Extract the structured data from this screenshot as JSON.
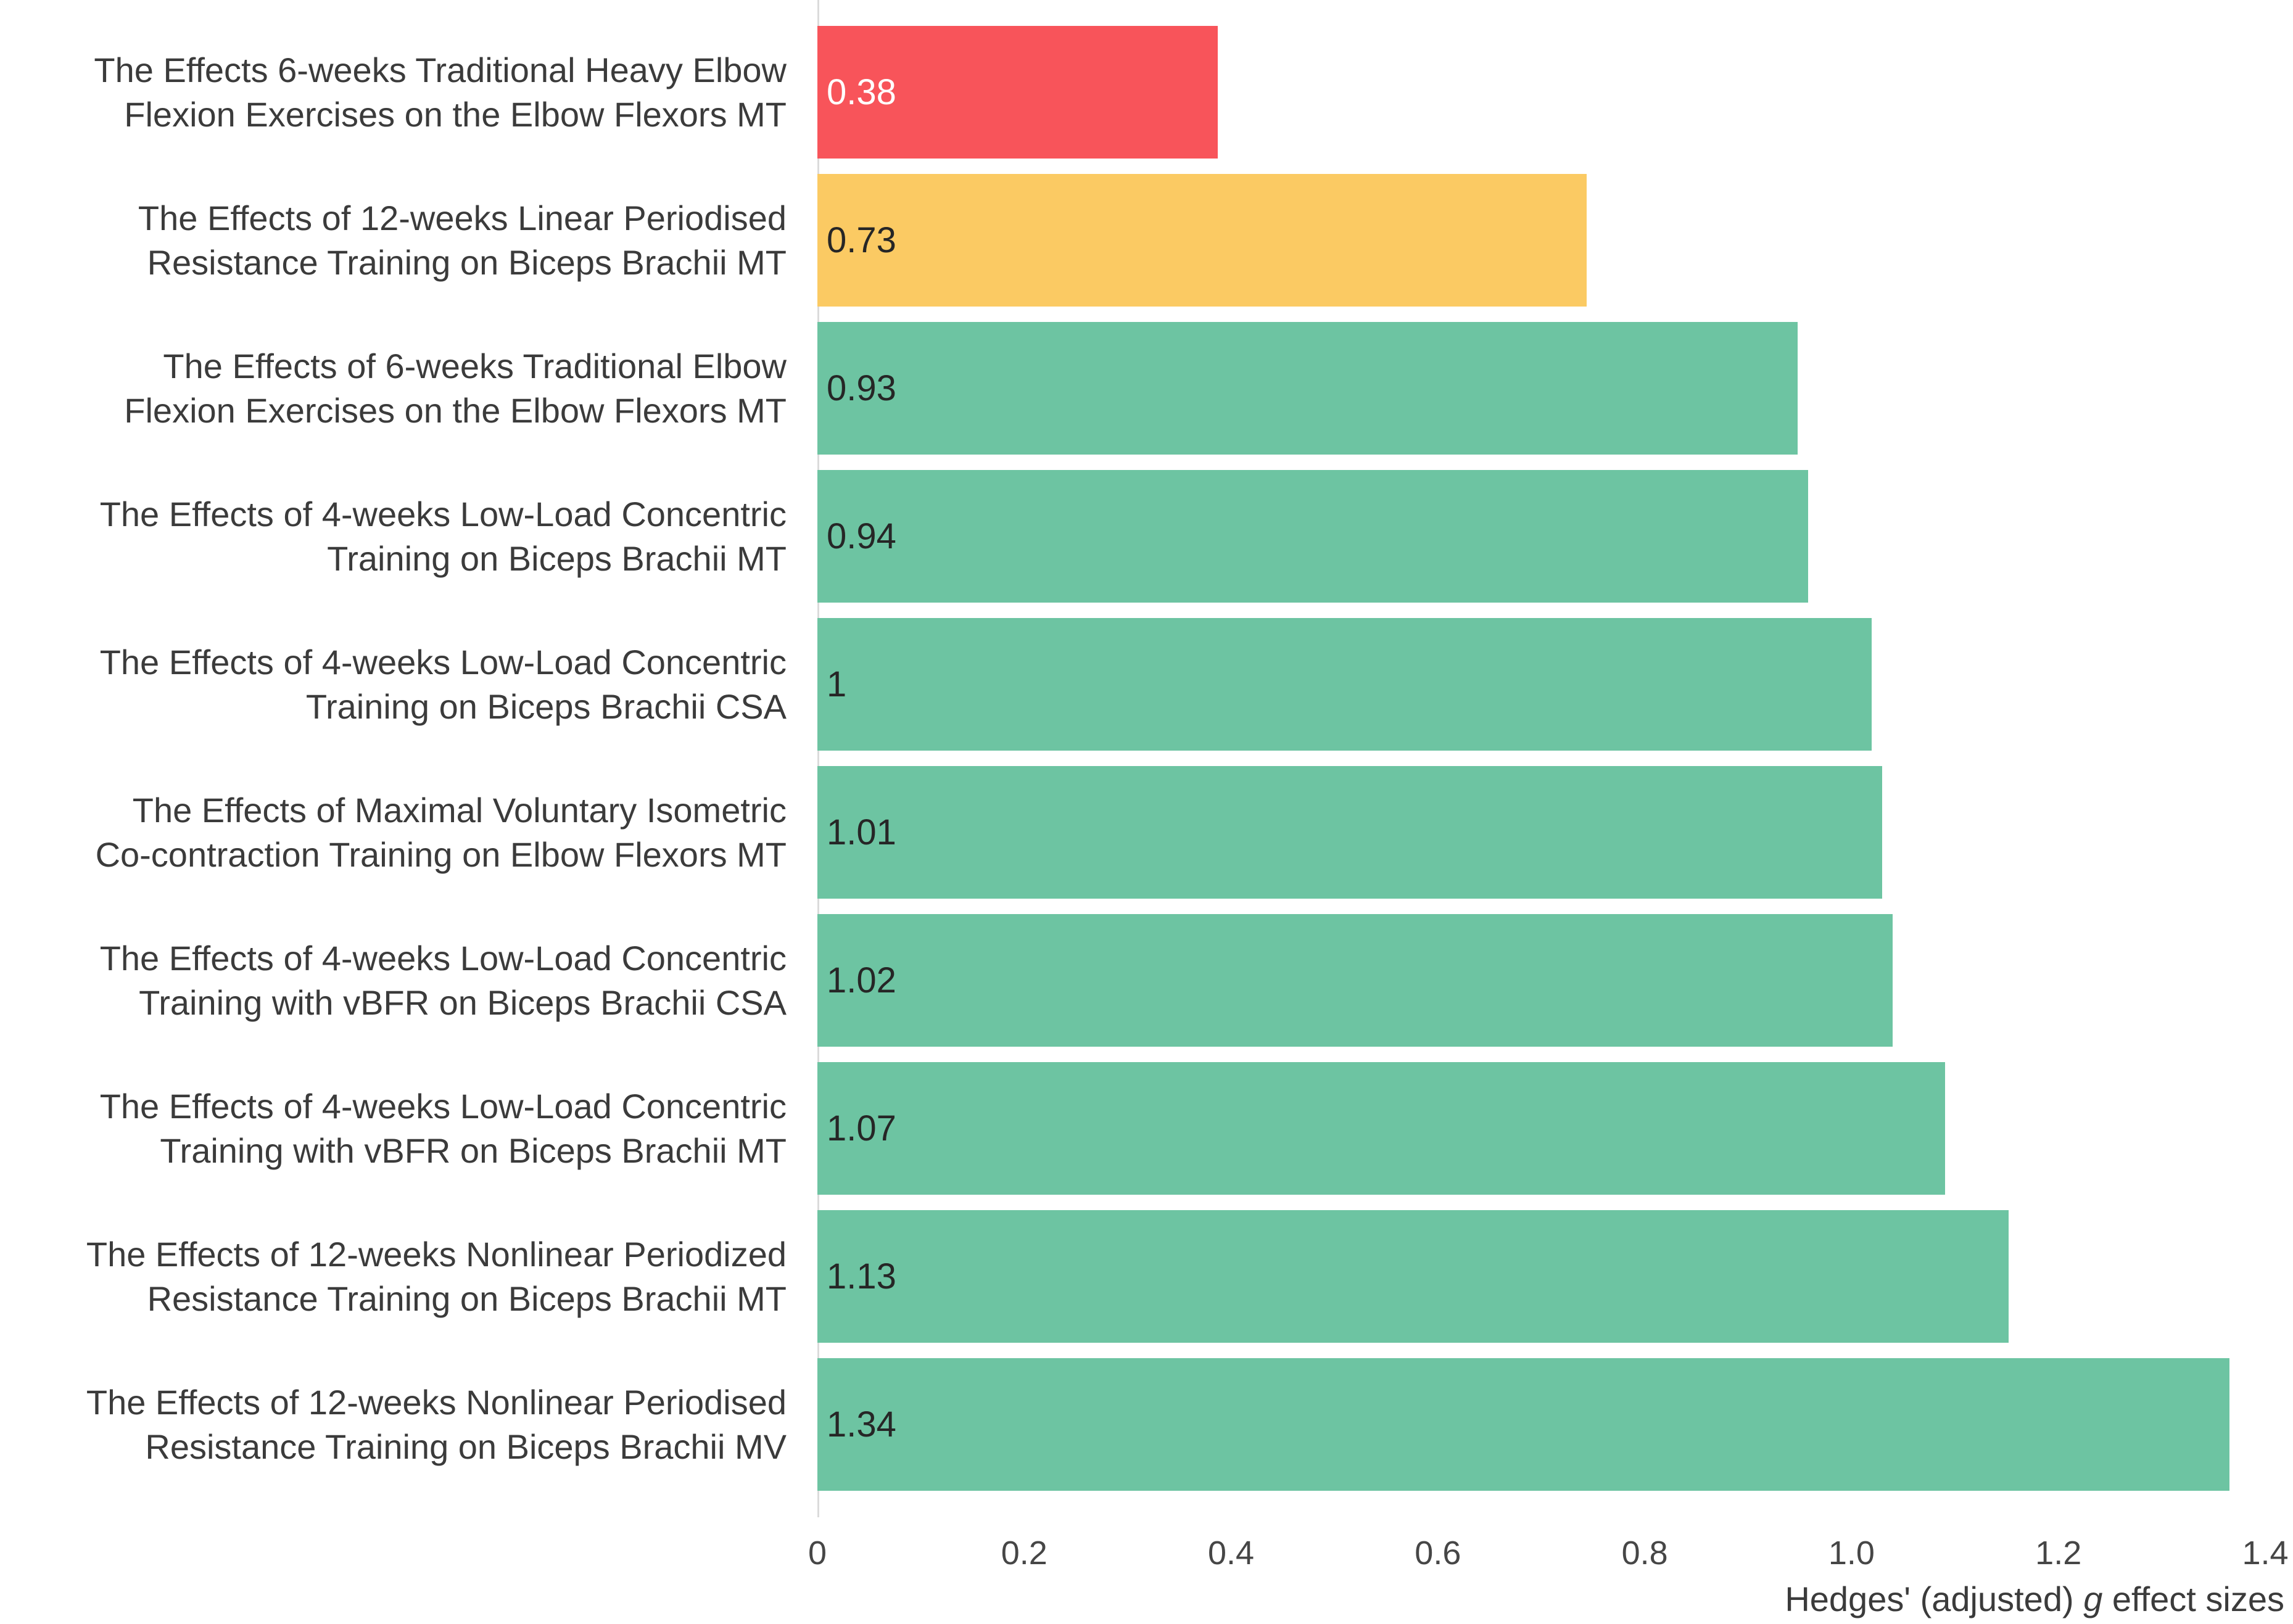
{
  "chart_data": {
    "type": "bar",
    "orientation": "horizontal",
    "xlabel": "Hedges' (adjusted) g effect sizes",
    "xlabel_parts": {
      "prefix": "Hedges' (adjusted) ",
      "italic": "g",
      "suffix": " effect sizes"
    },
    "xlim": [
      0,
      1.4
    ],
    "x_ticks": [
      "0",
      "0.2",
      "0.4",
      "0.6",
      "0.8",
      "1.0",
      "1.2",
      "1.4"
    ],
    "grid": false,
    "legend": false,
    "categories": [
      "The Effects 6-weeks Traditional Heavy Elbow\nFlexion Exercises on the Elbow Flexors MT",
      "The Effects of 12-weeks Linear Periodised\nResistance Training on Biceps Brachii MT",
      "The Effects of 6-weeks Traditional Elbow\nFlexion Exercises on the Elbow Flexors MT",
      "The Effects of 4-weeks Low-Load Concentric\nTraining on Biceps Brachii MT",
      "The Effects of 4-weeks Low-Load Concentric\nTraining on Biceps Brachii CSA",
      "The Effects of Maximal Voluntary Isometric\nCo-contraction Training on Elbow Flexors MT",
      "The Effects of 4-weeks Low-Load Concentric\nTraining with vBFR on Biceps Brachii CSA",
      "The Effects of 4-weeks Low-Load Concentric\nTraining with vBFR on Biceps Brachii MT",
      "The Effects of 12-weeks Nonlinear Periodized\nResistance Training on Biceps Brachii MT",
      "The Effects of 12-weeks Nonlinear Periodised\nResistance Training on Biceps Brachii MV"
    ],
    "values": [
      0.38,
      0.73,
      0.93,
      0.94,
      1,
      1.01,
      1.02,
      1.07,
      1.13,
      1.34
    ],
    "value_labels": [
      "0.38",
      "0.73",
      "0.93",
      "0.94",
      "1",
      "1.01",
      "1.02",
      "1.07",
      "1.13",
      "1.34"
    ],
    "bar_colors": [
      "#f8545a",
      "#fbca63",
      "#6dc4a2",
      "#6dc4a2",
      "#6dc4a2",
      "#6dc4a2",
      "#6dc4a2",
      "#6dc4a2",
      "#6dc4a2",
      "#6dc4a2"
    ],
    "value_label_colors": [
      "#ffffff",
      "#262626",
      "#262626",
      "#262626",
      "#262626",
      "#262626",
      "#262626",
      "#262626",
      "#262626",
      "#262626"
    ]
  },
  "colors": {
    "background": "#ffffff",
    "bar_red": "#f8545a",
    "bar_yellow": "#fbca63",
    "bar_green": "#6dc4a2",
    "axis_line": "#dbdbdb",
    "category_text": "#3b3b3b",
    "tick_text": "#464646",
    "value_text_light": "#ffffff",
    "value_text_dark": "#262626"
  }
}
